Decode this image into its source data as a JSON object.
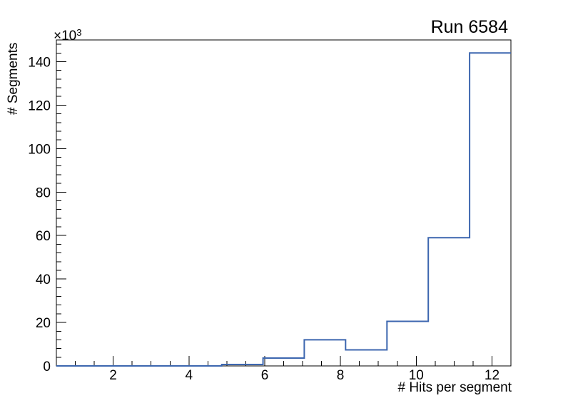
{
  "title": "Run 6584",
  "colors": {
    "histogram_line": "#3c66af",
    "axis": "#000000",
    "text": "#000000",
    "background": "#ffffff"
  },
  "x_axis": {
    "title": "# Hits per segment",
    "range": [
      0.5,
      12.5
    ],
    "major_tick_values": [
      2,
      4,
      6,
      8,
      10,
      12
    ],
    "major_tick_labels": [
      "2",
      "4",
      "6",
      "8",
      "10",
      "12"
    ],
    "minor_tick_step": 0.5
  },
  "y_axis": {
    "title": "# Segments",
    "range": [
      0,
      150000
    ],
    "major_tick_values": [
      0,
      20000,
      40000,
      60000,
      80000,
      100000,
      120000,
      140000
    ],
    "major_tick_labels": [
      "0",
      "20",
      "40",
      "60",
      "80",
      "100",
      "120",
      "140"
    ],
    "minor_tick_step": 4000,
    "multiplier_base": "×10",
    "multiplier_exponent": "3"
  },
  "chart_data": {
    "type": "bar",
    "subtype": "step-histogram",
    "title": "Run 6584",
    "xlabel": "# Hits per segment",
    "ylabel": "# Segments",
    "xlim": [
      0.5,
      12.5
    ],
    "ylim": [
      0,
      150000
    ],
    "y_unit_multiplier": 1000,
    "bin_edges": [
      0.5,
      1.591,
      2.682,
      3.773,
      4.864,
      5.955,
      7.045,
      8.136,
      9.227,
      10.318,
      11.409,
      12.5
    ],
    "values": [
      0,
      0,
      0,
      0,
      650,
      3600,
      12000,
      7400,
      20500,
      59000,
      144000
    ],
    "grid": false,
    "legend": false
  }
}
